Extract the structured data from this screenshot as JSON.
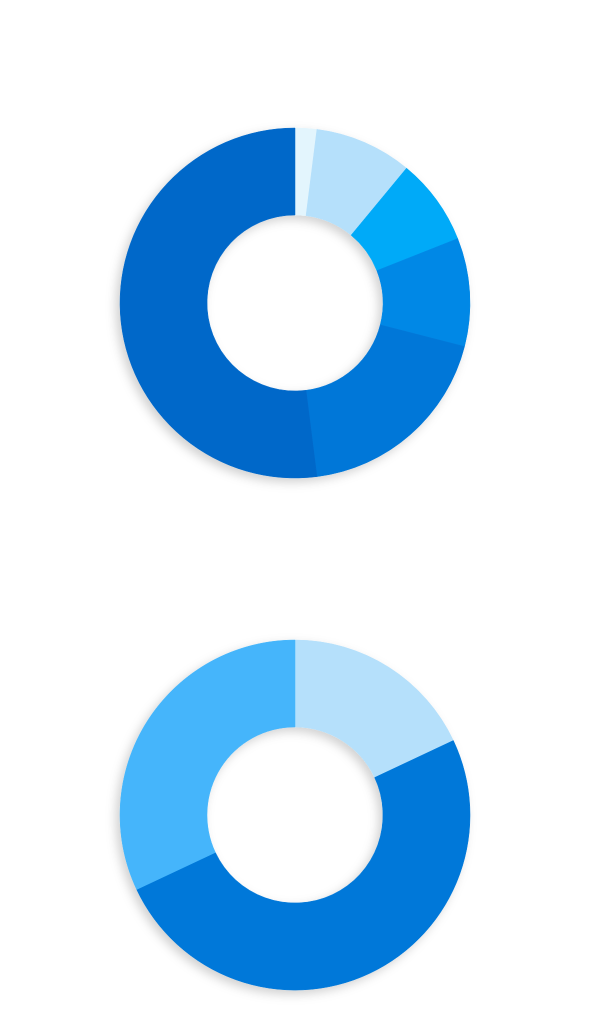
{
  "chart_data": [
    {
      "type": "donut",
      "values": [
        2,
        9,
        8,
        10,
        19,
        52
      ],
      "colors": [
        "#e3f5fd",
        "#b5e0fb",
        "#00aaf8",
        "#0088e6",
        "#0077d8",
        "#0068c9"
      ]
    },
    {
      "type": "donut",
      "values": [
        18,
        50,
        32
      ],
      "colors": [
        "#b5e0fb",
        "#0078d9",
        "#44b5fb"
      ]
    }
  ]
}
